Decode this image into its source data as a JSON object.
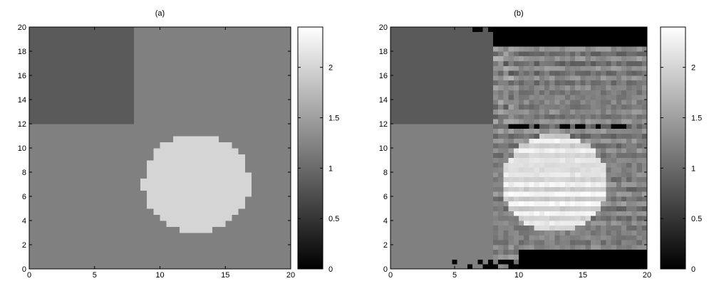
{
  "chart_data": [
    {
      "type": "heatmap",
      "title": "(a)",
      "xlim": [
        0,
        20
      ],
      "ylim": [
        0,
        20
      ],
      "x_ticks": [
        0,
        5,
        10,
        15,
        20
      ],
      "y_ticks": [
        0,
        2,
        4,
        6,
        8,
        10,
        12,
        14,
        16,
        18,
        20
      ],
      "grid": false,
      "colormap": "gray",
      "background_value": 1.2,
      "regions": [
        {
          "shape": "rectangle",
          "x": [
            0,
            8
          ],
          "y": [
            12,
            20
          ],
          "value": 0.85
        },
        {
          "shape": "circle",
          "center": [
            12.8,
            7.1
          ],
          "radius": 4.1,
          "value": 2.0
        }
      ],
      "colorbar": {
        "range": [
          0,
          2.4
        ],
        "ticks": [
          0,
          0.5,
          1,
          1.5,
          2
        ],
        "tick_labels": [
          "0",
          "0.5",
          "1",
          "1.5",
          "2"
        ]
      }
    },
    {
      "type": "heatmap",
      "title": "(b)",
      "xlim": [
        0,
        20
      ],
      "ylim": [
        0,
        20
      ],
      "x_ticks": [
        0,
        5,
        10,
        15,
        20
      ],
      "y_ticks": [
        0,
        2,
        4,
        6,
        8,
        10,
        12,
        14,
        16,
        18,
        20
      ],
      "grid": false,
      "colormap": "gray",
      "background_value": 1.2,
      "regions": [
        {
          "shape": "rectangle",
          "x": [
            0,
            8
          ],
          "y": [
            12,
            20
          ],
          "value": 0.85
        },
        {
          "shape": "circle",
          "center": [
            12.8,
            7.1
          ],
          "radius": 4.1,
          "value": 2.1
        },
        {
          "shape": "band",
          "description": "black top-right",
          "x": [
            8,
            20
          ],
          "y": [
            18.5,
            20
          ],
          "value": 0.0
        },
        {
          "shape": "band",
          "description": "black bottom-right",
          "x": [
            10,
            20
          ],
          "y": [
            0,
            1.5
          ],
          "value": 0.0
        }
      ],
      "colorbar": {
        "range": [
          0,
          2.4
        ],
        "ticks": [
          0,
          0.5,
          1,
          1.5,
          2
        ],
        "tick_labels": [
          "0",
          "0.5",
          "1",
          "1.5",
          "2"
        ]
      }
    }
  ]
}
